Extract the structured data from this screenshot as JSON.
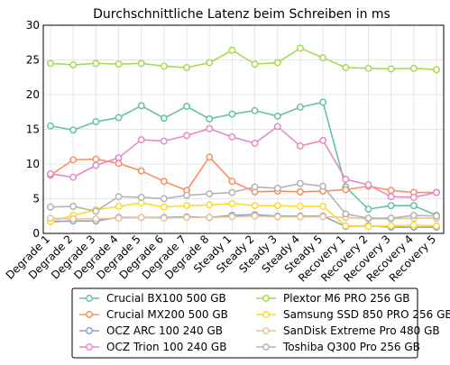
{
  "chart_data": {
    "type": "line",
    "title": "Durchschnittliche Latenz beim Schreiben in ms",
    "xlabel": "",
    "ylabel": "",
    "ylim": [
      0,
      30
    ],
    "yticks": [
      0,
      5,
      10,
      15,
      20,
      25,
      30
    ],
    "grid": true,
    "legend_position": "bottom",
    "categories": [
      "Degrade 1",
      "Degrade 2",
      "Degrade 3",
      "Degrade 4",
      "Degrade 5",
      "Degrade 6",
      "Degrade 7",
      "Degrade 8",
      "Steady 1",
      "Steady 2",
      "Steady 3",
      "Steady 4",
      "Steady 5",
      "Recovery 1",
      "Recovery 2",
      "Recovery 3",
      "Recovery 4",
      "Recovery 5"
    ],
    "series": [
      {
        "name": "Crucial BX100 500 GB",
        "color": "#66c2a5",
        "values": [
          15.5,
          14.9,
          16.1,
          16.7,
          18.4,
          16.6,
          18.3,
          16.5,
          17.2,
          17.7,
          16.9,
          18.2,
          18.9,
          6.7,
          3.5,
          4.0,
          4.0,
          2.6
        ]
      },
      {
        "name": "Crucial MX200 500 GB",
        "color": "#fc8d62",
        "values": [
          8.4,
          10.6,
          10.7,
          10.1,
          9.0,
          7.5,
          6.2,
          11.0,
          7.5,
          6.0,
          6.1,
          6.0,
          6.1,
          6.3,
          6.8,
          6.2,
          5.9,
          5.9
        ]
      },
      {
        "name": "OCZ ARC 100 240 GB",
        "color": "#8da0cb",
        "values": [
          1.7,
          1.8,
          1.8,
          2.3,
          2.3,
          2.3,
          2.4,
          2.3,
          2.6,
          2.7,
          2.5,
          2.5,
          2.5,
          1.0,
          1.1,
          0.9,
          0.9,
          0.9
        ]
      },
      {
        "name": "OCZ Trion 100 240 GB",
        "color": "#e78ac3",
        "values": [
          8.6,
          8.1,
          9.8,
          10.9,
          13.5,
          13.3,
          14.1,
          15.1,
          13.9,
          13.0,
          15.4,
          12.6,
          13.4,
          7.8,
          7.0,
          5.3,
          5.2,
          5.9
        ]
      },
      {
        "name": "Plextor M6 PRO 256 GB",
        "color": "#a6d854",
        "values": [
          24.5,
          24.3,
          24.5,
          24.4,
          24.5,
          24.1,
          23.9,
          24.6,
          26.4,
          24.4,
          24.6,
          26.7,
          25.3,
          23.9,
          23.8,
          23.7,
          23.8,
          23.6
        ]
      },
      {
        "name": "Samsung SSD 850 PRO 256 GB",
        "color": "#ffd92f",
        "values": [
          1.7,
          2.6,
          3.4,
          3.9,
          4.4,
          3.8,
          4.0,
          4.1,
          4.3,
          4.0,
          4.0,
          3.9,
          3.9,
          1.1,
          1.0,
          1.1,
          1.2,
          1.1
        ]
      },
      {
        "name": "SanDisk Extreme Pro 480 GB",
        "color": "#e5c494",
        "values": [
          2.2,
          2.1,
          2.1,
          2.2,
          2.3,
          2.2,
          2.3,
          2.3,
          2.4,
          2.5,
          2.4,
          2.4,
          2.4,
          2.3,
          2.1,
          2.1,
          2.2,
          2.2
        ]
      },
      {
        "name": "Toshiba Q300 Pro 256 GB",
        "color": "#b3b3b3",
        "values": [
          3.8,
          3.9,
          3.2,
          5.3,
          5.2,
          5.0,
          5.5,
          5.7,
          5.9,
          6.7,
          6.5,
          7.2,
          6.8,
          2.8,
          2.2,
          2.2,
          2.6,
          2.5
        ]
      }
    ]
  }
}
